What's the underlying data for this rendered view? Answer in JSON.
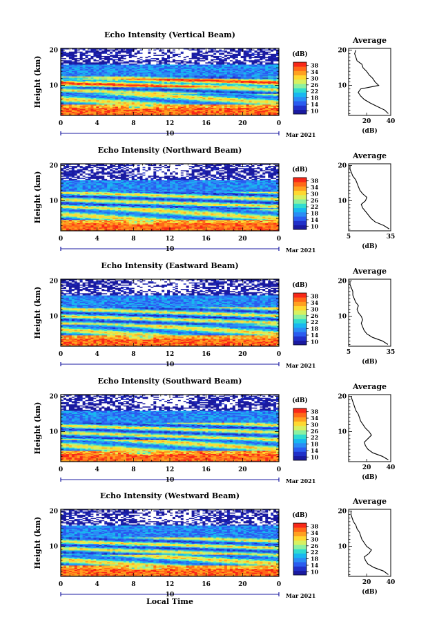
{
  "colors": {
    "colormap": [
      "#1a1aa0",
      "#2030c8",
      "#2a5cf0",
      "#2a8cf5",
      "#18b8f0",
      "#30dcd0",
      "#8cf0a0",
      "#d8f060",
      "#ffd830",
      "#ffa020",
      "#ff6818",
      "#f82818"
    ],
    "background_band": "#24246a",
    "frame": "#000000",
    "date_bar": "#1a1aa0"
  },
  "chart_data": [
    {
      "type": "heatmap",
      "title": "Echo Intensity (Vertical Beam)",
      "ylabel": "Height (km)",
      "xticks": [
        "0",
        "4",
        "8",
        "12",
        "16",
        "20",
        "0"
      ],
      "yticks": [
        "20",
        "10"
      ],
      "xlim": [
        0,
        24
      ],
      "ylim": [
        1.5,
        20.5
      ],
      "date_center": "10",
      "date_label": "Mar 2021",
      "colorbar": {
        "unit": "(dB)",
        "ticks": [
          "38",
          "34",
          "30",
          "26",
          "22",
          "18",
          "14",
          "10"
        ],
        "range": [
          10,
          38
        ]
      },
      "average": {
        "title": "Average",
        "xlabel": "(dB)",
        "xticks": [
          "20",
          "40"
        ],
        "xlim": [
          5,
          40
        ],
        "yticks": [
          "20",
          "10"
        ],
        "height": [
          2,
          3,
          4,
          5,
          6,
          7,
          8,
          9,
          10,
          11,
          12,
          13,
          14,
          15,
          16,
          17,
          18,
          19,
          20
        ],
        "db": [
          38,
          35,
          29,
          23,
          18,
          15,
          13,
          15,
          30,
          27,
          25,
          22,
          20,
          17,
          16,
          12,
          11,
          10,
          11
        ]
      }
    },
    {
      "type": "heatmap",
      "title": "Echo Intensity (Northward Beam)",
      "ylabel": "Height (km)",
      "xticks": [
        "0",
        "4",
        "8",
        "12",
        "16",
        "20",
        "0"
      ],
      "yticks": [
        "20",
        "10"
      ],
      "xlim": [
        0,
        24
      ],
      "ylim": [
        1.5,
        20.5
      ],
      "date_center": "10",
      "date_label": "Mar 2021",
      "colorbar": {
        "unit": "(dB)",
        "ticks": [
          "38",
          "34",
          "30",
          "26",
          "22",
          "18",
          "14",
          "10"
        ],
        "range": [
          10,
          38
        ]
      },
      "average": {
        "title": "Average",
        "xlabel": "(dB)",
        "xticks": [
          "5",
          "35"
        ],
        "xlim": [
          5,
          35
        ],
        "yticks": [
          "20",
          "10"
        ],
        "height": [
          2,
          3,
          4,
          5,
          6,
          7,
          8,
          9,
          10,
          11,
          12,
          13,
          14,
          15,
          16,
          17,
          18,
          19,
          20
        ],
        "db": [
          34,
          30,
          24,
          21,
          19,
          17,
          15,
          14,
          17,
          18,
          15,
          13,
          12,
          11,
          10,
          8,
          7,
          6,
          6
        ]
      }
    },
    {
      "type": "heatmap",
      "title": "Echo Intensity (Eastward Beam)",
      "ylabel": "Height (km)",
      "xticks": [
        "0",
        "4",
        "8",
        "12",
        "16",
        "20",
        "0"
      ],
      "yticks": [
        "20",
        "10"
      ],
      "xlim": [
        0,
        24
      ],
      "ylim": [
        1.5,
        20.5
      ],
      "date_center": "10",
      "date_label": "Mar 2021",
      "colorbar": {
        "unit": "(dB)",
        "ticks": [
          "38",
          "34",
          "30",
          "26",
          "22",
          "18",
          "14",
          "10"
        ],
        "range": [
          10,
          38
        ]
      },
      "average": {
        "title": "Average",
        "xlabel": "(dB)",
        "xticks": [
          "5",
          "35"
        ],
        "xlim": [
          5,
          35
        ],
        "yticks": [
          "20",
          "10"
        ],
        "height": [
          2,
          3,
          4,
          5,
          6,
          7,
          8,
          9,
          10,
          11,
          12,
          13,
          14,
          15,
          16,
          17,
          18,
          19,
          20
        ],
        "db": [
          33,
          29,
          22,
          18,
          16,
          15,
          14,
          15,
          14,
          12,
          11,
          12,
          10,
          9,
          8,
          8,
          7,
          6,
          6
        ]
      }
    },
    {
      "type": "heatmap",
      "title": "Echo Intensity (Southward Beam)",
      "ylabel": "Height (km)",
      "xticks": [
        "0",
        "4",
        "8",
        "12",
        "16",
        "20",
        "0"
      ],
      "yticks": [
        "20",
        "10"
      ],
      "xlim": [
        0,
        24
      ],
      "ylim": [
        1.5,
        20.5
      ],
      "date_center": "10",
      "date_label": "Mar 2021",
      "colorbar": {
        "unit": "(dB)",
        "ticks": [
          "38",
          "34",
          "30",
          "26",
          "22",
          "18",
          "14",
          "10"
        ],
        "range": [
          10,
          38
        ]
      },
      "average": {
        "title": "Average",
        "xlabel": "(dB)",
        "xticks": [
          "20",
          "40"
        ],
        "xlim": [
          5,
          40
        ],
        "yticks": [
          "20",
          "10"
        ],
        "height": [
          2,
          3,
          4,
          5,
          6,
          7,
          8,
          9,
          10,
          11,
          12,
          13,
          14,
          15,
          16,
          17,
          18,
          19,
          20
        ],
        "db": [
          38,
          33,
          25,
          21,
          19,
          18,
          21,
          24,
          22,
          19,
          17,
          15,
          14,
          13,
          11,
          10,
          9,
          8,
          7
        ]
      }
    },
    {
      "type": "heatmap",
      "title": "Echo Intensity (Westward Beam)",
      "ylabel": "Height (km)",
      "xticks": [
        "0",
        "4",
        "8",
        "12",
        "16",
        "20",
        "0"
      ],
      "yticks": [
        "20",
        "10"
      ],
      "xlim": [
        0,
        24
      ],
      "ylim": [
        1.5,
        20.5
      ],
      "date_center": "10",
      "date_label": "Mar 2021",
      "xlabel": "Local Time",
      "colorbar": {
        "unit": "(dB)",
        "ticks": [
          "38",
          "34",
          "30",
          "26",
          "22",
          "18",
          "14",
          "10"
        ],
        "range": [
          10,
          38
        ]
      },
      "average": {
        "title": "Average",
        "xlabel": "(dB)",
        "xticks": [
          "20",
          "40"
        ],
        "xlim": [
          5,
          40
        ],
        "yticks": [
          "20",
          "10"
        ],
        "height": [
          2,
          3,
          4,
          5,
          6,
          7,
          8,
          9,
          10,
          11,
          12,
          13,
          14,
          15,
          16,
          17,
          18,
          19,
          20
        ],
        "db": [
          38,
          34,
          26,
          21,
          19,
          18,
          22,
          24,
          20,
          18,
          16,
          15,
          14,
          12,
          11,
          9,
          8,
          7,
          7
        ]
      }
    }
  ]
}
